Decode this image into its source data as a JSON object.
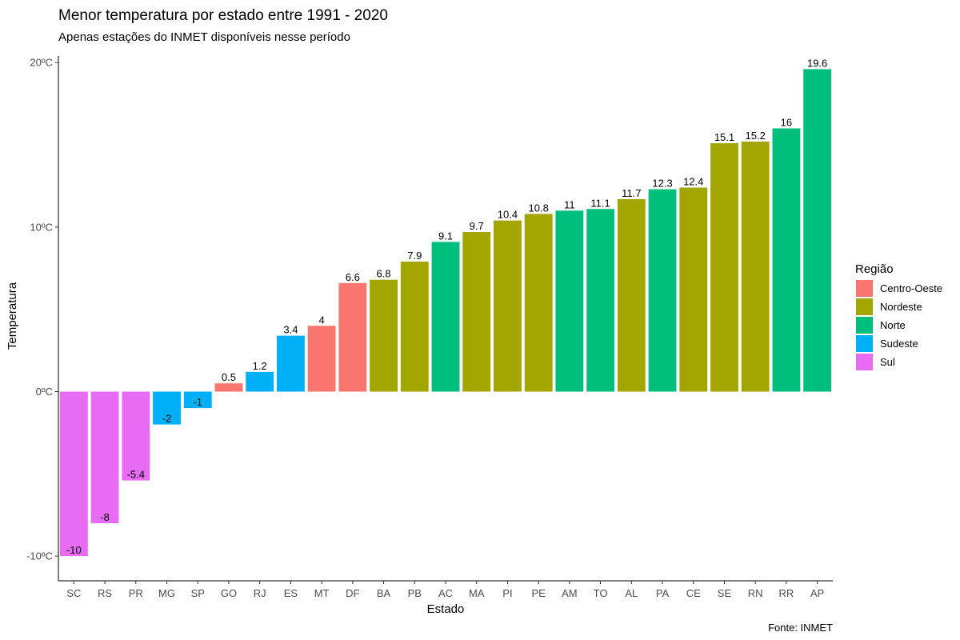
{
  "chart_data": {
    "type": "bar",
    "title": "Menor temperatura por estado entre 1991 - 2020",
    "subtitle": "Apenas estações do INMET disponíveis nesse período",
    "xlabel": "Estado",
    "ylabel": "Temperatura",
    "caption": "Fonte: INMET",
    "ylim": [
      -11.5,
      20.4
    ],
    "yticks": [
      -10,
      0,
      10,
      20
    ],
    "ytick_labels": [
      "-10ºC",
      "0ºC",
      "10ºC",
      "20ºC"
    ],
    "grid": false,
    "legend_position": "right",
    "legend_title": "Região",
    "regions": [
      {
        "name": "Centro-Oeste",
        "color": "#F8766D"
      },
      {
        "name": "Nordeste",
        "color": "#A3A500"
      },
      {
        "name": "Norte",
        "color": "#00BF7D"
      },
      {
        "name": "Sudeste",
        "color": "#00B0F6"
      },
      {
        "name": "Sul",
        "color": "#E76BF3"
      }
    ],
    "categories": [
      "SC",
      "RS",
      "PR",
      "MG",
      "SP",
      "GO",
      "RJ",
      "ES",
      "MT",
      "DF",
      "BA",
      "PB",
      "AC",
      "MA",
      "PI",
      "PE",
      "AM",
      "TO",
      "AL",
      "PA",
      "CE",
      "SE",
      "RN",
      "RR",
      "AP"
    ],
    "values": [
      -10,
      -8,
      -5.4,
      -2,
      -1,
      0.5,
      1.2,
      3.4,
      4,
      6.6,
      6.8,
      7.9,
      9.1,
      9.7,
      10.4,
      10.8,
      11,
      11.1,
      11.7,
      12.3,
      12.4,
      15.1,
      15.2,
      16,
      19.6
    ],
    "labels": [
      "-10",
      "-8",
      "-5.4",
      "-2",
      "-1",
      "0.5",
      "1.2",
      "3.4",
      "4",
      "6.6",
      "6.8",
      "7.9",
      "9.1",
      "9.7",
      "10.4",
      "10.8",
      "11",
      "11.1",
      "11.7",
      "12.3",
      "12.4",
      "15.1",
      "15.2",
      "16",
      "19.6"
    ],
    "bar_regions": [
      "Sul",
      "Sul",
      "Sul",
      "Sudeste",
      "Sudeste",
      "Centro-Oeste",
      "Sudeste",
      "Sudeste",
      "Centro-Oeste",
      "Centro-Oeste",
      "Nordeste",
      "Nordeste",
      "Norte",
      "Nordeste",
      "Nordeste",
      "Nordeste",
      "Norte",
      "Norte",
      "Nordeste",
      "Norte",
      "Nordeste",
      "Nordeste",
      "Nordeste",
      "Norte",
      "Norte"
    ]
  }
}
